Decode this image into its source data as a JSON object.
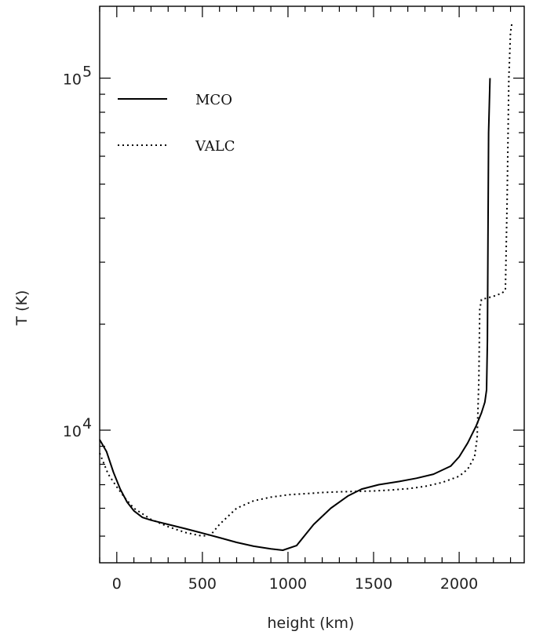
{
  "chart_data": {
    "type": "line",
    "xlabel": "height (km)",
    "ylabel": "T (K)",
    "xlim": [
      -100,
      2380
    ],
    "ylim": [
      4200,
      160000
    ],
    "yscale": "log",
    "grid": false,
    "legend_position": "top-left",
    "x_ticks": [
      {
        "value": 0,
        "label": "0"
      },
      {
        "value": 500,
        "label": "500"
      },
      {
        "value": 1000,
        "label": "1000"
      },
      {
        "value": 1500,
        "label": "1500"
      },
      {
        "value": 2000,
        "label": "2000"
      }
    ],
    "y_ticks": [
      {
        "value": 10000,
        "base": "10",
        "exp": "4"
      },
      {
        "value": 100000,
        "base": "10",
        "exp": "5"
      }
    ],
    "series": [
      {
        "name": "MCO",
        "style": "solid",
        "x": [
          -100,
          -60,
          -20,
          20,
          60,
          100,
          150,
          200,
          300,
          400,
          500,
          600,
          700,
          800,
          900,
          970,
          1050,
          1150,
          1250,
          1350,
          1430,
          1530,
          1650,
          1750,
          1850,
          1950,
          2000,
          2050,
          2100,
          2130,
          2150,
          2160,
          2165,
          2168,
          2172,
          2180
        ],
        "y": [
          9400,
          8700,
          7600,
          6800,
          6250,
          5900,
          5650,
          5550,
          5400,
          5250,
          5100,
          4950,
          4800,
          4680,
          4600,
          4560,
          4700,
          5400,
          6000,
          6500,
          6800,
          7000,
          7150,
          7300,
          7500,
          7900,
          8400,
          9200,
          10300,
          11200,
          12000,
          13000,
          18000,
          35000,
          70000,
          100000
        ]
      },
      {
        "name": "VALC",
        "style": "dotted",
        "x": [
          -100,
          -50,
          0,
          50,
          100,
          200,
          300,
          400,
          500,
          550,
          600,
          700,
          800,
          900,
          1000,
          1100,
          1200,
          1300,
          1400,
          1500,
          1600,
          1700,
          1800,
          1900,
          2000,
          2050,
          2090,
          2105,
          2115,
          2120,
          2130,
          2200,
          2250,
          2270,
          2280,
          2290,
          2300,
          2310
        ],
        "y": [
          8600,
          7500,
          6900,
          6400,
          6000,
          5580,
          5320,
          5120,
          5000,
          5050,
          5400,
          6000,
          6300,
          6450,
          6550,
          6600,
          6650,
          6680,
          6700,
          6720,
          6760,
          6820,
          6920,
          7100,
          7400,
          7750,
          8400,
          9500,
          14000,
          22000,
          23500,
          24000,
          24500,
          25000,
          45000,
          100000,
          135000,
          145000
        ]
      }
    ]
  }
}
